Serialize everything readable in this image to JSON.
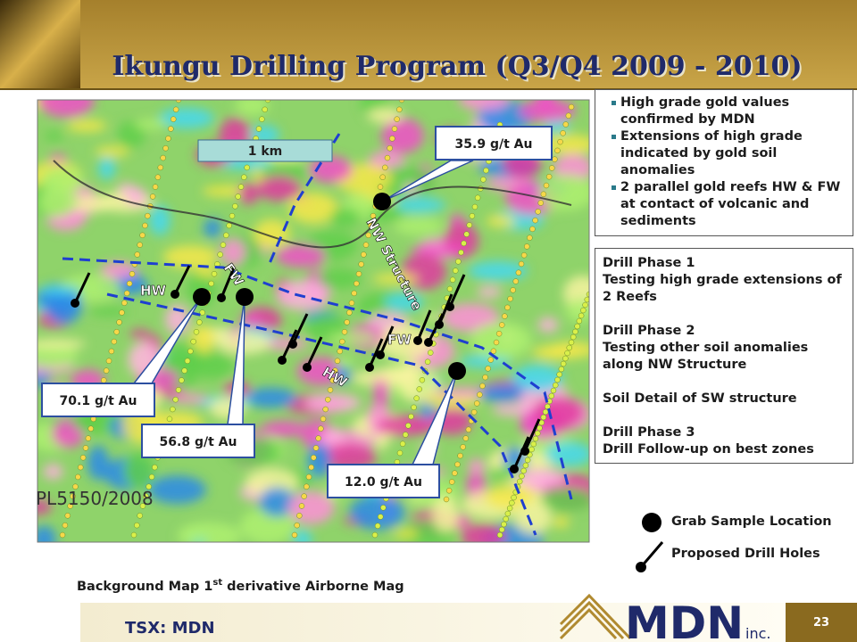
{
  "header": {
    "title": "Ikungu Drilling Program (Q3/Q4 2009 - 2010)"
  },
  "map": {
    "scale": "1 km",
    "licence": "PL5150/2008",
    "labels": [
      "HW",
      "FW",
      "NW Structure",
      "FW",
      "HW"
    ],
    "callouts": [
      "35.9 g/t Au",
      "70.1 g/t Au",
      "56.8 g/t Au",
      "12.0 g/t Au"
    ]
  },
  "notes": {
    "bullets": [
      "High grade gold values confirmed by MDN",
      "Extensions of high grade indicated by gold soil anomalies",
      "2 parallel gold reefs HW & FW at contact of volcanic and sediments"
    ]
  },
  "phases": [
    [
      "Drill Phase 1",
      "Testing high grade extensions of 2 Reefs"
    ],
    [
      "Drill Phase 2",
      "Testing other soil anomalies along NW Structure"
    ],
    [
      "Soil Detail of SW structure"
    ],
    [
      "Drill Phase 3",
      "Drill Follow-up on best zones"
    ]
  ],
  "legend": [
    "Grab Sample Location",
    "Proposed Drill Holes"
  ],
  "caption": {
    "text": "Background Map 1",
    "superscript": "st",
    "rest": "derivative Airborne Mag"
  },
  "footer": {
    "ticker": "TSX: MDN",
    "logo": "MDN",
    "logo_suffix": "inc.",
    "page": "23"
  }
}
